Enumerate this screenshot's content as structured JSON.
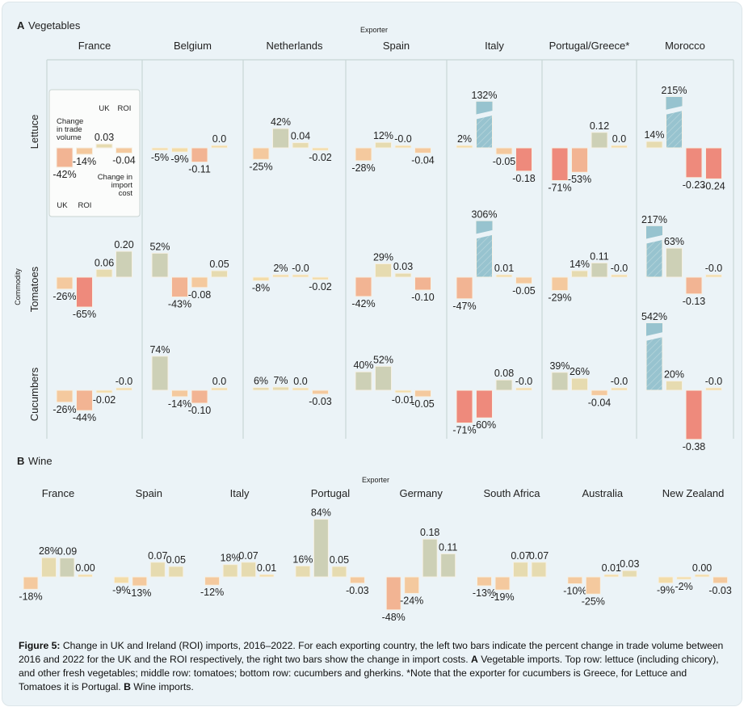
{
  "colors": {
    "strong_negative": "#ee8a7c",
    "negative": "#f2b493",
    "slight_negative": "#f4c99e",
    "neutral": "#f3dca8",
    "slight_positive": "#e6dbb0",
    "positive": "#cdd0b6",
    "large_positive": "#97c3cf",
    "grid": "#c8d6d6",
    "legend_box": "#fbfcfb"
  },
  "chart_data": [
    {
      "type": "bar",
      "panel_letter": "A",
      "title": "Vegetables",
      "xlabel": "Exporter",
      "ylabel": "Commodity",
      "bar_order": [
        "UK trade volume change",
        "ROI trade volume change",
        "UK import cost change",
        "ROI import cost change"
      ],
      "legend": {
        "top_labels": [
          "UK",
          "ROI"
        ],
        "volume_label": [
          "Change",
          "in trade",
          "volume"
        ],
        "cost_label": [
          "Change in",
          "import",
          "cost"
        ],
        "bottom_labels": [
          "UK",
          "ROI"
        ],
        "placement": "inside France/Lettuce cell"
      },
      "categories": [
        "France",
        "Belgium",
        "Netherlands",
        "Spain",
        "Italy",
        "Portugal/Greece*",
        "Morocco"
      ],
      "rows": [
        {
          "name": "Lettuce",
          "values": [
            [
              "-42%",
              "-14%",
              "0.03",
              "-0.04"
            ],
            [
              "-5%",
              "-9%",
              "-0.11",
              "0.0"
            ],
            [
              "-25%",
              "42%",
              "0.04",
              "-0.02"
            ],
            [
              "-28%",
              "12%",
              "-0.0",
              "-0.04"
            ],
            [
              "2%",
              "132%",
              "-0.05",
              "-0.18"
            ],
            [
              "-71%",
              "-53%",
              "0.12",
              "0.0"
            ],
            [
              "14%",
              "215%",
              "-0.23",
              "-0.24"
            ]
          ]
        },
        {
          "name": "Tomatoes",
          "values": [
            [
              "-26%",
              "-65%",
              "0.06",
              "0.20"
            ],
            [
              "52%",
              "-43%",
              "-0.08",
              "0.05"
            ],
            [
              "-8%",
              "2%",
              "-0.0",
              "-0.02"
            ],
            [
              "-42%",
              "29%",
              "0.03",
              "-0.10"
            ],
            [
              "-47%",
              "306%",
              "0.01",
              "-0.05"
            ],
            [
              "-29%",
              "14%",
              "0.11",
              "-0.0"
            ],
            [
              "217%",
              "63%",
              "-0.13",
              "-0.0"
            ]
          ]
        },
        {
          "name": "Cucumbers",
          "values": [
            [
              "-26%",
              "-44%",
              "-0.02",
              "-0.0"
            ],
            [
              "74%",
              "-14%",
              "-0.10",
              "0.0"
            ],
            [
              "6%",
              "7%",
              "0.0",
              "-0.03"
            ],
            [
              "40%",
              "52%",
              "-0.01",
              "-0.05"
            ],
            [
              "-71%",
              "-60%",
              "0.08",
              "-0.0"
            ],
            [
              "39%",
              "26%",
              "-0.04",
              "-0.0"
            ],
            [
              "542%",
              "20%",
              "-0.38",
              "-0.0"
            ]
          ]
        }
      ],
      "broken_axis_above": "100%"
    },
    {
      "type": "bar",
      "panel_letter": "B",
      "title": "Wine",
      "xlabel": "Exporter",
      "categories": [
        "France",
        "Spain",
        "Italy",
        "Portugal",
        "Germany",
        "South Africa",
        "Australia",
        "New Zealand"
      ],
      "values": [
        [
          "-18%",
          "28%",
          "0.09",
          "0.00"
        ],
        [
          "-9%",
          "-13%",
          "0.07",
          "0.05"
        ],
        [
          "-12%",
          "18%",
          "0.07",
          "0.01"
        ],
        [
          "16%",
          "84%",
          "0.05",
          "-0.03"
        ],
        [
          "-48%",
          "-24%",
          "0.18",
          "0.11"
        ],
        [
          "-13%",
          "-19%",
          "0.07",
          "0.07"
        ],
        [
          "-10%",
          "-25%",
          "0.01",
          "0.03"
        ],
        [
          "-9%",
          "-2%",
          "0.00",
          "-0.03"
        ]
      ]
    }
  ],
  "caption": {
    "figure_label": "Figure 5:",
    "text1": " Change in UK and Ireland (ROI) imports, 2016–2022. For each exporting country, the left two bars indicate the percent change in trade volume between 2016 and 2022 for the UK and the ROI respectively, the right two bars show the change in import costs. ",
    "a_label": "A",
    "text2": " Vegetable imports. Top row: lettuce (including chicory), and other fresh vegetables; middle row: tomatoes; bottom row: cucumbers and gherkins. *Note that the exporter for cucumbers is Greece, for Lettuce and Tomatoes it is Portugal. ",
    "b_label": "B",
    "text3": " Wine imports."
  }
}
